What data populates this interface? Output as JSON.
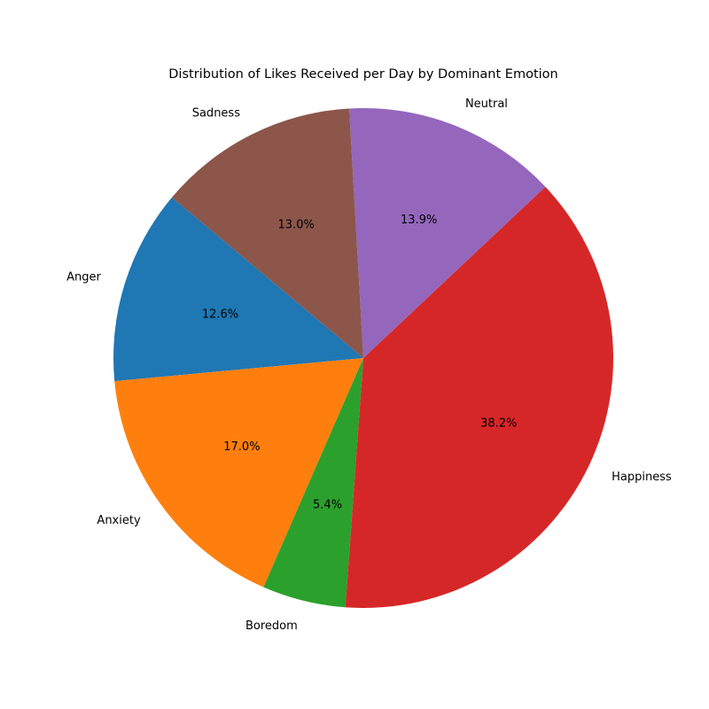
{
  "chart_data": {
    "type": "pie",
    "title": "Distribution of Likes Received per Day by Dominant Emotion",
    "start_angle_deg": 140,
    "direction": "counterclockwise",
    "slices": [
      {
        "label": "Anger",
        "value": 12.6,
        "pct_label": "12.6%",
        "color": "#1f77b4"
      },
      {
        "label": "Anxiety",
        "value": 17.0,
        "pct_label": "17.0%",
        "color": "#ff7f0e"
      },
      {
        "label": "Boredom",
        "value": 5.4,
        "pct_label": "5.4%",
        "color": "#2ca02c"
      },
      {
        "label": "Happiness",
        "value": 38.2,
        "pct_label": "38.2%",
        "color": "#d62728"
      },
      {
        "label": "Neutral",
        "value": 13.9,
        "pct_label": "13.9%",
        "color": "#9467bd"
      },
      {
        "label": "Sadness",
        "value": 13.0,
        "pct_label": "13.0%",
        "color": "#8c564b"
      }
    ]
  }
}
